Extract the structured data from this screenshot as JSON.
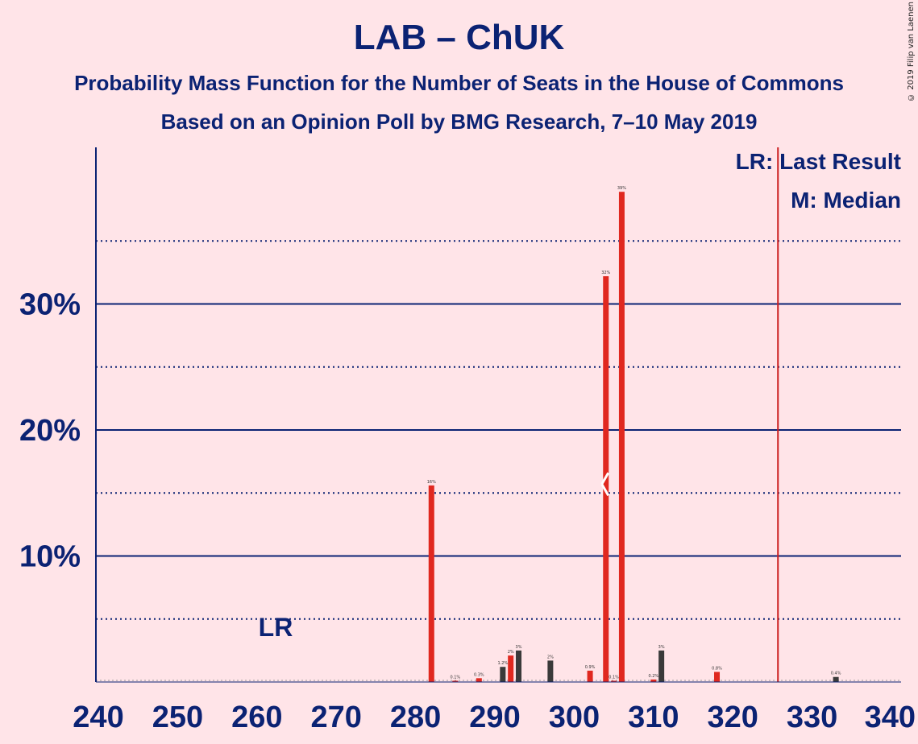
{
  "title": "LAB – ChUK",
  "subtitle1": "Probability Mass Function for the Number of Seats in the House of Commons",
  "subtitle2": "Based on an Opinion Poll by BMG Research, 7–10 May 2019",
  "copyright": "© 2019 Filip van Laenen",
  "legend": {
    "lr": "LR: Last Result",
    "m": "M: Median"
  },
  "lr_marker_label": "LR",
  "colors": {
    "background": "#ffe4e8",
    "text": "#0b2273",
    "bar_red": "#e0281f",
    "bar_dark": "#3a3a3a",
    "vline": "#cc1f1f"
  },
  "chart_data": {
    "type": "bar",
    "xlabel": "",
    "ylabel": "",
    "xlim": [
      240,
      340
    ],
    "ylim": [
      0,
      42
    ],
    "x_ticks": [
      "240",
      "250",
      "260",
      "270",
      "280",
      "290",
      "300",
      "310",
      "320",
      "330",
      "340"
    ],
    "y_ticks": [
      {
        "value": 10,
        "label": "10%"
      },
      {
        "value": 20,
        "label": "20%"
      },
      {
        "value": 30,
        "label": "30%"
      }
    ],
    "minor_gridlines": [
      5,
      15,
      25,
      35
    ],
    "last_result_seat": 326,
    "median_seat": 304,
    "bars": [
      {
        "seat": 282,
        "value": 15.6,
        "label": "16%",
        "color": "red"
      },
      {
        "seat": 285,
        "value": 0.1,
        "label": "0.1%",
        "color": "red"
      },
      {
        "seat": 288,
        "value": 0.3,
        "label": "0.3%",
        "color": "red"
      },
      {
        "seat": 291,
        "value": 1.2,
        "label": "1.2%",
        "color": "dark"
      },
      {
        "seat": 292,
        "value": 2.1,
        "label": "2%",
        "color": "red"
      },
      {
        "seat": 293,
        "value": 2.5,
        "label": "3%",
        "color": "dark"
      },
      {
        "seat": 297,
        "value": 1.7,
        "label": "2%",
        "color": "dark"
      },
      {
        "seat": 302,
        "value": 0.9,
        "label": "0.9%",
        "color": "red"
      },
      {
        "seat": 304,
        "value": 32.2,
        "label": "32%",
        "color": "red"
      },
      {
        "seat": 305,
        "value": 0.1,
        "label": "0.1%",
        "color": "red"
      },
      {
        "seat": 306,
        "value": 38.9,
        "label": "39%",
        "color": "red"
      },
      {
        "seat": 310,
        "value": 0.2,
        "label": "0.2%",
        "color": "red"
      },
      {
        "seat": 311,
        "value": 2.5,
        "label": "3%",
        "color": "dark"
      },
      {
        "seat": 318,
        "value": 0.8,
        "label": "0.8%",
        "color": "red"
      },
      {
        "seat": 333,
        "value": 0.4,
        "label": "0.4%",
        "color": "dark"
      }
    ]
  }
}
